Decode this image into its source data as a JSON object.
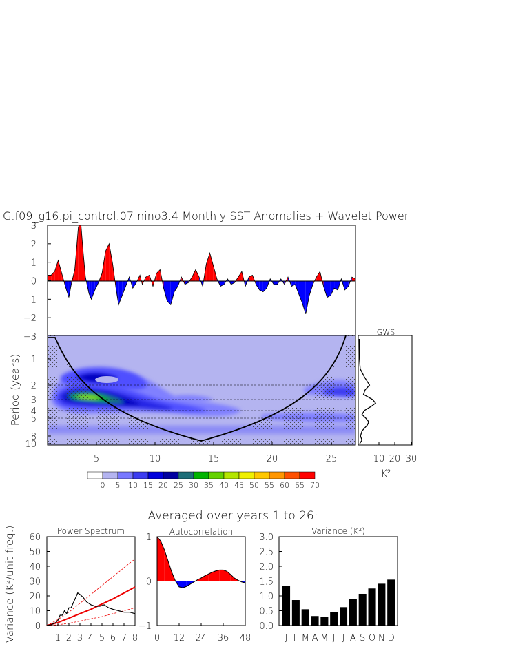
{
  "main_title": "G.f09_g16.pi_control.07 nino3.4 Monthly SST Anomalies + Wavelet Power",
  "anomaly_panel": {
    "type": "area",
    "y_ticks": [
      "3",
      "2",
      "1",
      "0",
      "−1",
      "−2",
      "−3"
    ],
    "ylim": [
      -3,
      3
    ],
    "xlim": [
      1,
      27
    ],
    "positive_color": "#ff0000",
    "negative_color": "#0000ff",
    "series_x_years": [
      1.0,
      1.3,
      1.6,
      1.9,
      2.2,
      2.5,
      2.8,
      3.0,
      3.3,
      3.6,
      3.8,
      4.0,
      4.2,
      4.5,
      4.7,
      5.0,
      5.3,
      5.6,
      5.9,
      6.2,
      6.5,
      6.8,
      7.0,
      7.3,
      7.6,
      7.9,
      8.2,
      8.5,
      8.8,
      9.0,
      9.3,
      9.6,
      9.9,
      10.2,
      10.5,
      10.8,
      11.1,
      11.4,
      11.7,
      12.0,
      12.3,
      12.6,
      12.9,
      13.2,
      13.5,
      13.8,
      14.1,
      14.4,
      14.7,
      15.0,
      15.3,
      15.6,
      15.9,
      16.2,
      16.5,
      16.8,
      17.1,
      17.4,
      17.7,
      18.0,
      18.3,
      18.6,
      18.9,
      19.2,
      19.5,
      19.8,
      20.1,
      20.4,
      20.7,
      21.0,
      21.3,
      21.6,
      21.9,
      22.2,
      22.5,
      22.8,
      23.1,
      23.4,
      23.7,
      24.0,
      24.3,
      24.6,
      24.9,
      25.2,
      25.5,
      25.8,
      26.1,
      26.4,
      26.7,
      27.0
    ],
    "series_sst": [
      0.3,
      0.3,
      0.5,
      1.1,
      0.4,
      -0.3,
      -0.9,
      -0.2,
      0.6,
      2.9,
      3.2,
      1.6,
      0.2,
      -0.7,
      -1.0,
      -0.5,
      -0.1,
      0.4,
      1.6,
      2.0,
      0.9,
      -0.5,
      -1.3,
      -0.8,
      -0.3,
      0.2,
      -0.4,
      -0.1,
      0.3,
      -0.2,
      0.2,
      0.3,
      -0.3,
      0.4,
      0.6,
      -0.4,
      -1.1,
      -1.3,
      -0.6,
      -0.3,
      0.2,
      -0.2,
      -0.1,
      0.2,
      0.6,
      0.2,
      -0.3,
      0.9,
      1.5,
      0.8,
      0.1,
      -0.3,
      -0.2,
      0.1,
      -0.2,
      -0.1,
      0.2,
      0.5,
      -0.3,
      0.2,
      0.3,
      -0.2,
      -0.5,
      -0.6,
      -0.4,
      0.1,
      -0.2,
      -0.2,
      0.1,
      -0.2,
      0.2,
      -0.3,
      -0.2,
      -0.7,
      -1.2,
      -1.8,
      -0.8,
      -0.2,
      0.2,
      0.5,
      -0.3,
      -0.9,
      -0.8,
      -0.4,
      -0.5,
      0.1,
      -0.5,
      -0.3,
      0.2,
      0.1
    ]
  },
  "wavelet_panel": {
    "type": "heatmap",
    "ylabel": "Period (years)",
    "y_ticks": [
      "1",
      "2",
      "3",
      "4",
      "5",
      "8",
      "10"
    ],
    "x_ticks": [
      "5",
      "10",
      "15",
      "20",
      "25"
    ],
    "dashed_periods_years": [
      2,
      3,
      4,
      5
    ],
    "background_color": "#b4b4f0",
    "hotspot_peak_period_years": 3,
    "hotspot_peak_year": 4.5
  },
  "gws_panel": {
    "title": "GWS",
    "x_ticks": [
      "10",
      "20",
      "30"
    ],
    "xlabel": "K²",
    "xlim": [
      0,
      35
    ],
    "period_years": [
      0.75,
      1.0,
      1.3,
      1.6,
      2.0,
      2.3,
      2.6,
      3.0,
      3.3,
      3.6,
      4.0,
      4.5,
      5.0,
      5.5,
      6.0,
      7.0,
      8.0,
      9.0,
      10.0
    ],
    "power": [
      0.2,
      0.3,
      0.8,
      3.5,
      7.0,
      4.0,
      3.0,
      9.0,
      11.0,
      8.0,
      3.5,
      2.0,
      4.5,
      6.5,
      5.5,
      2.0,
      1.0,
      2.0,
      0.5
    ]
  },
  "colorbar": {
    "labels": [
      "0",
      "5",
      "10",
      "15",
      "20",
      "25",
      "30",
      "35",
      "40",
      "45",
      "50",
      "55",
      "60",
      "65",
      "70"
    ],
    "colors": [
      "#ffffff",
      "#b4b4f0",
      "#7878ff",
      "#3c3cf0",
      "#0000dc",
      "#0000a0",
      "#1e6e78",
      "#00b400",
      "#64d200",
      "#b4e600",
      "#f0f000",
      "#ffc800",
      "#ff9600",
      "#ff5000",
      "#ff0000"
    ]
  },
  "lower_title": "Averaged over years 1 to 26:",
  "power_spectrum": {
    "title": "Power Spectrum",
    "ylabel": "Variance (K²/unit freq.)",
    "y_ticks": [
      "60",
      "50",
      "40",
      "30",
      "20",
      "10",
      "0"
    ],
    "x_ticks": [
      "1",
      "2",
      "3",
      "4",
      "5",
      "6",
      "7",
      "8"
    ],
    "ylim": [
      0,
      60
    ],
    "xlim": [
      0,
      8
    ],
    "spectrum_x": [
      0,
      0.4,
      0.8,
      1.0,
      1.2,
      1.4,
      1.6,
      1.8,
      2.0,
      2.2,
      2.5,
      2.8,
      3.0,
      3.3,
      3.6,
      4.0,
      4.4,
      4.8,
      5.2,
      5.6,
      6.0,
      6.5,
      7.0,
      7.5,
      8.0
    ],
    "spectrum_y": [
      0,
      0.5,
      2.0,
      3.5,
      7.0,
      7.0,
      10.0,
      8.0,
      12.0,
      12.0,
      17.0,
      22.0,
      21.0,
      19.0,
      16.0,
      14.0,
      13.0,
      13.0,
      14.0,
      12.0,
      11.0,
      10.0,
      9.0,
      9.0,
      8.0
    ],
    "red_noise_x": [
      0,
      1,
      2,
      3,
      4,
      5,
      6,
      7,
      8
    ],
    "red_noise_y": [
      0,
      2,
      5,
      8,
      11,
      14.5,
      18,
      22,
      26
    ],
    "upper_bound_y": [
      0,
      4,
      9,
      15,
      21,
      27,
      33,
      39,
      45
    ],
    "lower_bound_y": [
      0,
      0.5,
      1.5,
      3,
      4.5,
      6,
      8,
      10,
      12
    ]
  },
  "autocorrelation": {
    "title": "Autocorrelation",
    "y_ticks": [
      "1",
      "0",
      "−1"
    ],
    "x_ticks": [
      "0",
      "12",
      "24",
      "36",
      "48"
    ],
    "ylim": [
      -1,
      1
    ],
    "xlim": [
      0,
      48
    ],
    "lags": [
      0,
      2,
      4,
      6,
      8,
      10,
      12,
      14,
      16,
      18,
      20,
      22,
      24,
      26,
      28,
      30,
      32,
      34,
      36,
      38,
      40,
      42,
      44,
      46,
      48
    ],
    "values": [
      1.0,
      0.9,
      0.7,
      0.45,
      0.2,
      0.0,
      -0.13,
      -0.15,
      -0.12,
      -0.07,
      -0.02,
      0.03,
      0.07,
      0.12,
      0.16,
      0.2,
      0.23,
      0.25,
      0.25,
      0.22,
      0.15,
      0.07,
      0.02,
      -0.02,
      -0.04
    ]
  },
  "variance": {
    "title": "Variance (K²)",
    "y_ticks": [
      "3.0",
      "2.5",
      "2.0",
      "1.5",
      "1.0",
      "0.5",
      "0.0"
    ],
    "ylim": [
      0,
      3.0
    ],
    "categories": [
      "J",
      "F",
      "M",
      "A",
      "M",
      "J",
      "J",
      "A",
      "S",
      "O",
      "N",
      "D"
    ],
    "values": [
      1.33,
      0.86,
      0.55,
      0.32,
      0.28,
      0.45,
      0.62,
      0.89,
      1.07,
      1.25,
      1.41,
      1.55
    ],
    "bar_color": "#000000"
  }
}
